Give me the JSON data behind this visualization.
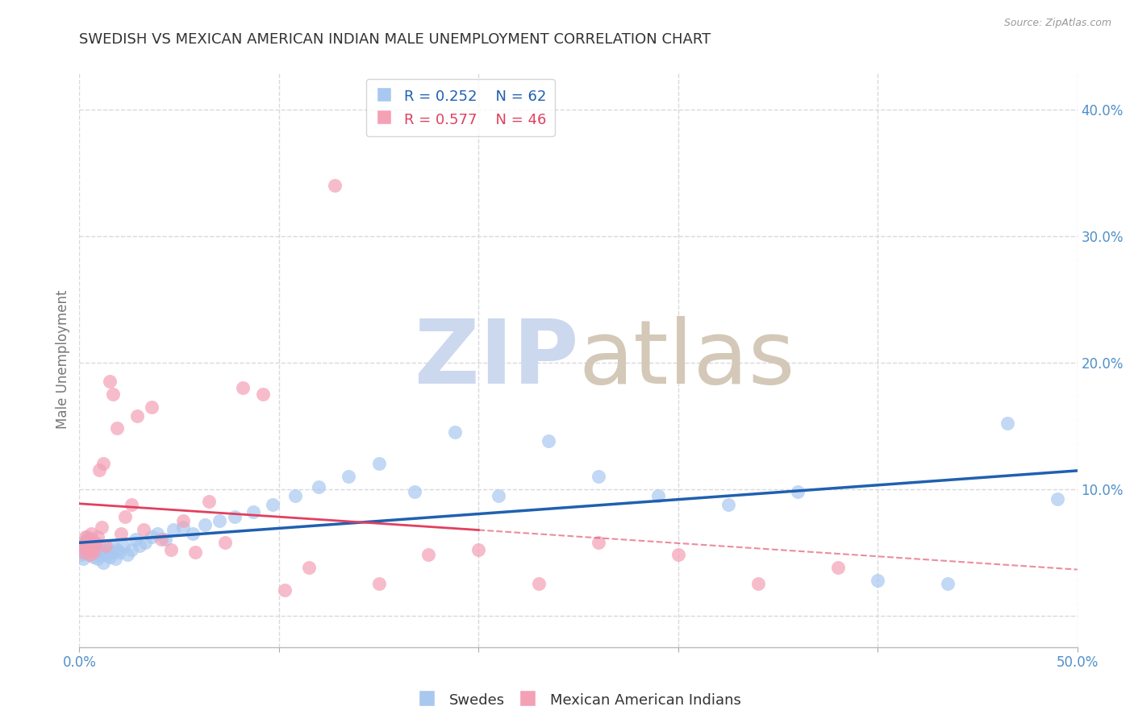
{
  "title": "SWEDISH VS MEXICAN AMERICAN INDIAN MALE UNEMPLOYMENT CORRELATION CHART",
  "source": "Source: ZipAtlas.com",
  "ylabel": "Male Unemployment",
  "right_ytick_vals": [
    0.0,
    0.1,
    0.2,
    0.3,
    0.4
  ],
  "right_ytick_labels": [
    "",
    "10.0%",
    "20.0%",
    "30.0%",
    "40.0%"
  ],
  "xlim": [
    0.0,
    0.5
  ],
  "ylim": [
    -0.025,
    0.43
  ],
  "swedes_color": "#a8c8f0",
  "mexican_color": "#f4a0b5",
  "swedes_line_color": "#2060b0",
  "mexican_line_color": "#e04060",
  "R_swedes": 0.252,
  "N_swedes": 62,
  "R_mexican": 0.577,
  "N_mexican": 46,
  "legend_label_swedes": "Swedes",
  "legend_label_mexican": "Mexican American Indians",
  "swedes_x": [
    0.001,
    0.002,
    0.002,
    0.003,
    0.003,
    0.004,
    0.004,
    0.005,
    0.005,
    0.006,
    0.006,
    0.007,
    0.007,
    0.008,
    0.008,
    0.009,
    0.009,
    0.01,
    0.01,
    0.011,
    0.012,
    0.013,
    0.014,
    0.015,
    0.016,
    0.017,
    0.018,
    0.019,
    0.02,
    0.022,
    0.024,
    0.026,
    0.028,
    0.03,
    0.033,
    0.036,
    0.039,
    0.043,
    0.047,
    0.052,
    0.057,
    0.063,
    0.07,
    0.078,
    0.087,
    0.097,
    0.108,
    0.12,
    0.135,
    0.15,
    0.168,
    0.188,
    0.21,
    0.235,
    0.26,
    0.29,
    0.325,
    0.36,
    0.4,
    0.435,
    0.465,
    0.49
  ],
  "swedes_y": [
    0.048,
    0.052,
    0.045,
    0.058,
    0.05,
    0.055,
    0.062,
    0.048,
    0.057,
    0.052,
    0.06,
    0.046,
    0.055,
    0.05,
    0.058,
    0.045,
    0.052,
    0.048,
    0.055,
    0.05,
    0.042,
    0.048,
    0.052,
    0.046,
    0.05,
    0.055,
    0.045,
    0.052,
    0.05,
    0.055,
    0.048,
    0.052,
    0.06,
    0.055,
    0.058,
    0.062,
    0.065,
    0.06,
    0.068,
    0.07,
    0.065,
    0.072,
    0.075,
    0.078,
    0.082,
    0.088,
    0.095,
    0.102,
    0.11,
    0.12,
    0.098,
    0.145,
    0.095,
    0.138,
    0.11,
    0.095,
    0.088,
    0.098,
    0.028,
    0.025,
    0.152,
    0.092
  ],
  "mexican_x": [
    0.001,
    0.002,
    0.003,
    0.003,
    0.004,
    0.004,
    0.005,
    0.005,
    0.006,
    0.006,
    0.007,
    0.007,
    0.008,
    0.009,
    0.01,
    0.011,
    0.012,
    0.013,
    0.015,
    0.017,
    0.019,
    0.021,
    0.023,
    0.026,
    0.029,
    0.032,
    0.036,
    0.041,
    0.046,
    0.052,
    0.058,
    0.065,
    0.073,
    0.082,
    0.092,
    0.103,
    0.115,
    0.128,
    0.15,
    0.175,
    0.2,
    0.23,
    0.26,
    0.3,
    0.34,
    0.38
  ],
  "mexican_y": [
    0.055,
    0.05,
    0.058,
    0.062,
    0.052,
    0.06,
    0.048,
    0.057,
    0.055,
    0.065,
    0.05,
    0.058,
    0.055,
    0.062,
    0.115,
    0.07,
    0.12,
    0.055,
    0.185,
    0.175,
    0.148,
    0.065,
    0.078,
    0.088,
    0.158,
    0.068,
    0.165,
    0.06,
    0.052,
    0.075,
    0.05,
    0.09,
    0.058,
    0.18,
    0.175,
    0.02,
    0.038,
    0.34,
    0.025,
    0.048,
    0.052,
    0.025,
    0.058,
    0.048,
    0.025,
    0.038
  ],
  "watermark_zip_color": "#ccd8ee",
  "watermark_atlas_color": "#d4c8b8",
  "background_color": "#ffffff",
  "grid_color": "#d8d8e0",
  "grid_style": "--"
}
